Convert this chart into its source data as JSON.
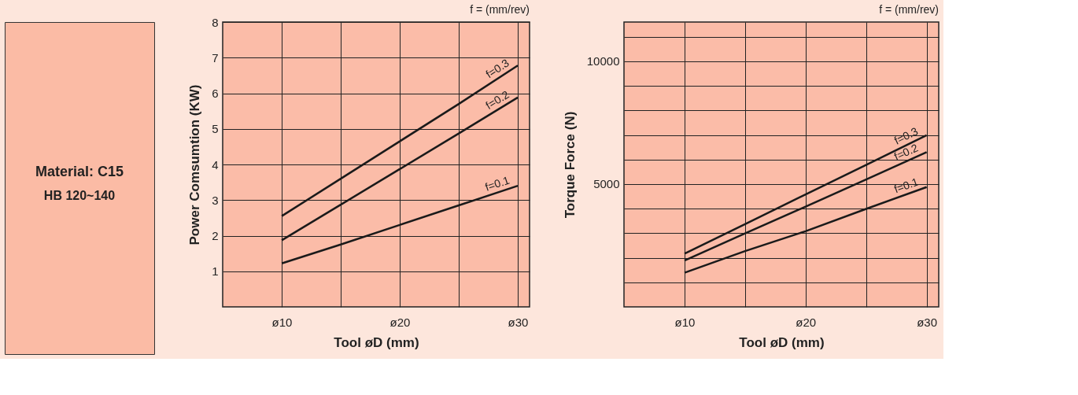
{
  "chart_data": [
    {
      "type": "other",
      "title": "Material: C15",
      "subtitle": "HB 120~140"
    },
    {
      "type": "line",
      "xlabel": "Tool øD (mm)",
      "ylabel": "Power Comsumtion (KW)",
      "annotations": [
        "f = (mm/rev)"
      ],
      "grid": true,
      "ylim": [
        0,
        8
      ],
      "yticks": [
        1,
        2,
        3,
        4,
        5,
        6,
        7,
        8
      ],
      "categories": [
        "ø10",
        null,
        "ø20",
        null,
        "ø30"
      ],
      "series": [
        {
          "name": "f=0.3",
          "color": "#1a1a1a",
          "values": [
            2.55,
            3.6,
            4.65,
            5.7,
            6.78
          ]
        },
        {
          "name": "f=0.2",
          "color": "#1a1a1a",
          "values": [
            1.87,
            2.87,
            3.87,
            4.87,
            5.88
          ]
        },
        {
          "name": "f=0.1",
          "color": "#1a1a1a",
          "values": [
            1.22,
            1.75,
            2.3,
            2.85,
            3.4
          ]
        }
      ]
    },
    {
      "type": "line",
      "xlabel": "Tool øD (mm)",
      "ylabel": "Torque Force (N)",
      "annotations": [
        "f = (mm/rev)"
      ],
      "grid": true,
      "ylim": [
        0,
        11600
      ],
      "yticks": [
        {
          "value": 1000,
          "label": null
        },
        {
          "value": 2000,
          "label": null
        },
        {
          "value": 3000,
          "label": null
        },
        {
          "value": 4000,
          "label": null
        },
        5000,
        {
          "value": 6000,
          "label": null
        },
        {
          "value": 7000,
          "label": null
        },
        {
          "value": 8000,
          "label": null
        },
        {
          "value": 9000,
          "label": null
        },
        10000,
        {
          "value": 11000,
          "label": null
        }
      ],
      "categories": [
        "ø10",
        null,
        "ø20",
        null,
        "ø30"
      ],
      "series": [
        {
          "name": "f=0.3",
          "color": "#1a1a1a",
          "values": [
            2170,
            3370,
            4580,
            5780,
            6990
          ]
        },
        {
          "name": "f=0.2",
          "color": "#1a1a1a",
          "values": [
            1890,
            2990,
            4080,
            5190,
            6300
          ]
        },
        {
          "name": "f=0.1",
          "color": "#1a1a1a",
          "values": [
            1390,
            2270,
            3080,
            3990,
            4880
          ]
        }
      ]
    }
  ]
}
